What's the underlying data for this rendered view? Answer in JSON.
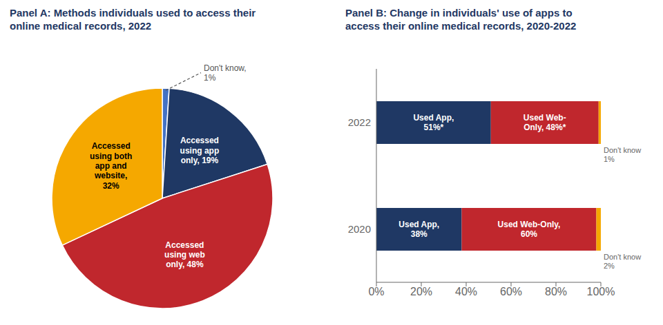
{
  "chart_data": [
    {
      "type": "pie",
      "title": "Panel A: Methods individuals used to access their\nonline medical records, 2022",
      "values": [
        1,
        19,
        48,
        32
      ],
      "value_labels": [
        "Don't know,\n1%",
        "Accessed\nusing app\nonly, 19%",
        "Accessed\nusing web\nonly, 48%",
        "Accessed\nusing both\napp and\nwebsite,\n32%"
      ],
      "colors": [
        "#4472C4",
        "#1F3864",
        "#C0272D",
        "#F5A800"
      ]
    },
    {
      "type": "bar",
      "title": "Panel B: Change in individuals' use of apps to\naccess their online medical records, 2020-2022",
      "orientation": "horizontal",
      "stacked": true,
      "categories": [
        "2022",
        "2020"
      ],
      "series": [
        {
          "color": "#1F3864",
          "values": [
            51,
            38
          ],
          "value_labels": [
            "Used App,\n51%*",
            "Used App,\n38%"
          ]
        },
        {
          "color": "#C0272D",
          "values": [
            48,
            60
          ],
          "value_labels": [
            "Used Web-\nOnly, 48%*",
            "Used Web-Only,\n60%"
          ]
        },
        {
          "color": "#F5A800",
          "values": [
            1,
            2
          ],
          "value_labels": [
            "Don't know\n1%",
            "Don't know\n2%"
          ]
        }
      ],
      "xlim": [
        0,
        100
      ],
      "xticks": [
        {
          "value": 0,
          "label": "0%"
        },
        {
          "value": 20,
          "label": "20%"
        },
        {
          "value": 40,
          "label": "40%"
        },
        {
          "value": 60,
          "label": "60%"
        },
        {
          "value": 80,
          "label": "80%"
        },
        {
          "value": 100,
          "label": "100%"
        }
      ]
    }
  ]
}
